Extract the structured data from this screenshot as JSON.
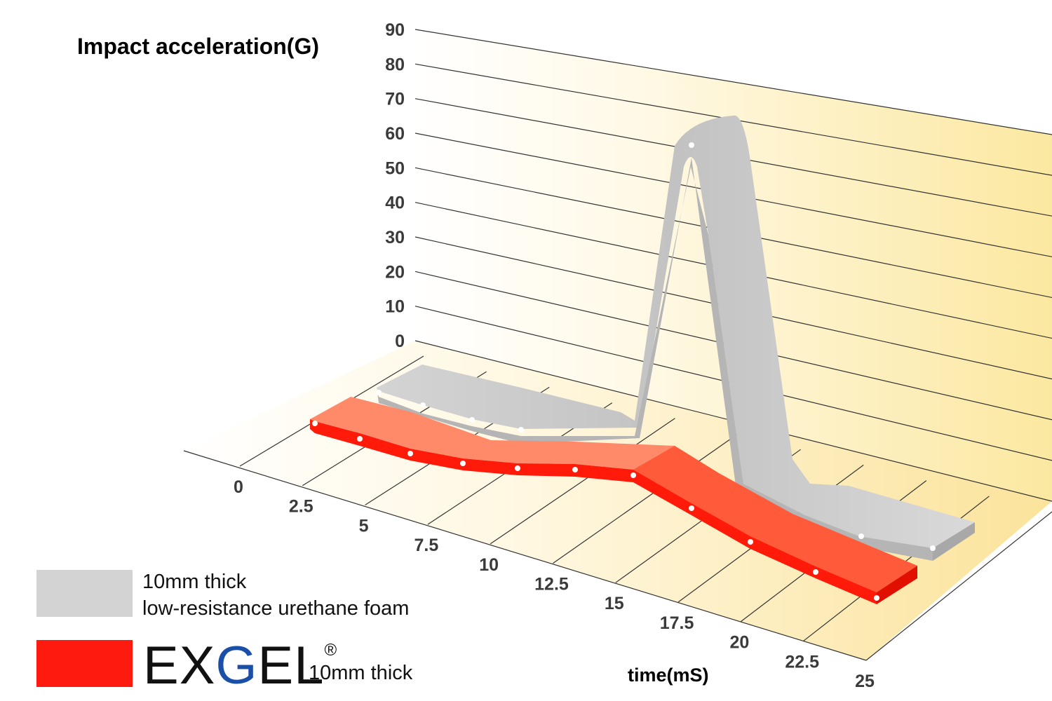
{
  "chart_data": {
    "type": "area",
    "title": "",
    "ylabel": "Impact acceleration(G)",
    "xlabel": "time(mS)",
    "ylim": [
      0,
      90
    ],
    "y_ticks": [
      "0",
      "10",
      "20",
      "30",
      "40",
      "50",
      "60",
      "70",
      "80",
      "90"
    ],
    "x_ticks": [
      "0",
      "2.5",
      "5",
      "7.5",
      "10",
      "12.5",
      "15",
      "17.5",
      "20",
      "22.5",
      "25"
    ],
    "x": [
      0,
      2.5,
      5,
      7.5,
      10,
      12.5,
      15,
      17.5,
      20,
      22.5,
      25
    ],
    "series": [
      {
        "name": "10mm thick low-resistance urethane foam",
        "color": "#cfcfcf",
        "values": [
          2,
          1,
          0.5,
          0.5,
          0.5,
          1,
          62,
          2,
          1,
          1,
          1
        ]
      },
      {
        "name": "EXGEL 10mm thick",
        "color": "#ff2a1a",
        "values": [
          2,
          1.5,
          1,
          0.5,
          0.5,
          0.5,
          3,
          2.5,
          1.5,
          1,
          1
        ]
      }
    ]
  },
  "legend": {
    "urethane_line1": "10mm thick",
    "urethane_line2": "low-resistance urethane foam",
    "urethane_color": "#d3d3d3",
    "exgel_color": "#ff1a10",
    "exgel_brand_ex": "EX",
    "exgel_brand_g": "G",
    "exgel_brand_el": "EL",
    "exgel_brand_mark": "®",
    "exgel_suffix": "10mm thick",
    "brand_g_color": "#1a4fa8"
  },
  "colors": {
    "wall_warm": "#fbe9a0",
    "floor_warm": "#fbe4a0",
    "grid": "#333333"
  }
}
